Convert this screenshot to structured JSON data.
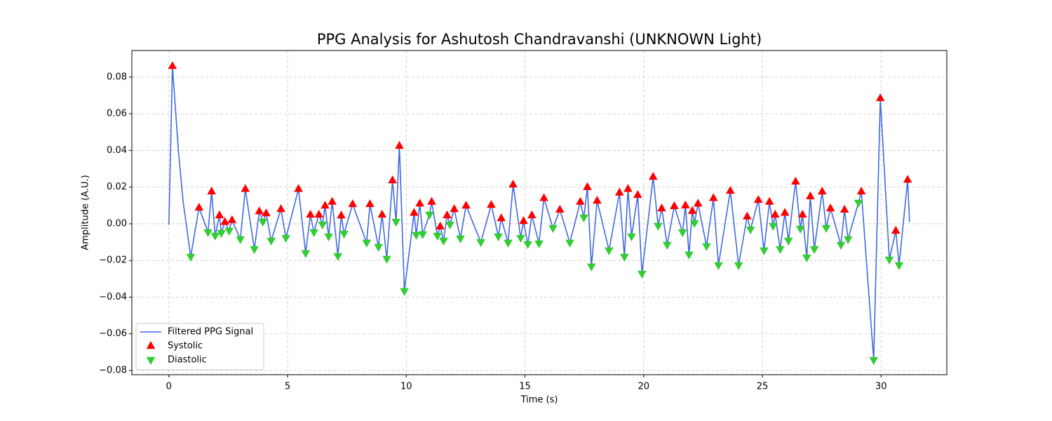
{
  "chart_data": {
    "type": "line",
    "title": "PPG Analysis for Ashutosh Chandravanshi (UNKNOWN Light)",
    "xlabel": "Time (s)",
    "ylabel": "Amplitude (A.U.)",
    "xlim": [
      -1.56,
      32.77
    ],
    "ylim": [
      -0.0823,
      0.0945
    ],
    "xticks": [
      0,
      5,
      10,
      15,
      20,
      25,
      30
    ],
    "yticks": [
      {
        "value": -0.08,
        "label": "−0.08"
      },
      {
        "value": -0.06,
        "label": "−0.06"
      },
      {
        "value": -0.04,
        "label": "−0.04"
      },
      {
        "value": -0.02,
        "label": "−0.02"
      },
      {
        "value": 0,
        "label": "0.00"
      },
      0.02,
      0.04,
      0.06,
      0.08
    ],
    "grid": true,
    "legend": "lower left",
    "series": [
      {
        "name": "Filtered PPG Signal",
        "type": "line",
        "color": "#4169e1",
        "x": [
          0,
          0.15,
          0.4,
          0.6,
          0.92,
          1.27,
          1.65,
          1.8,
          1.95,
          2.13,
          2.21,
          2.36,
          2.54,
          2.66,
          3.01,
          3.22,
          3.6,
          3.81,
          3.96,
          4.1,
          4.31,
          4.72,
          4.93,
          5.46,
          5.76,
          5.96,
          6.11,
          6.32,
          6.47,
          6.58,
          6.73,
          6.88,
          7.12,
          7.26,
          7.38,
          7.74,
          8.33,
          8.47,
          8.83,
          8.98,
          9.18,
          9.42,
          9.57,
          9.71,
          9.92,
          10.33,
          10.42,
          10.57,
          10.69,
          10.98,
          11.07,
          11.31,
          11.43,
          11.57,
          11.72,
          11.84,
          12.02,
          12.28,
          12.52,
          13.14,
          13.58,
          13.88,
          14.0,
          14.29,
          14.5,
          14.82,
          14.94,
          15.12,
          15.29,
          15.59,
          15.8,
          16.18,
          16.47,
          16.89,
          17.33,
          17.48,
          17.63,
          17.8,
          18.04,
          18.54,
          18.98,
          19.19,
          19.34,
          19.49,
          19.75,
          19.93,
          20.4,
          20.61,
          20.76,
          20.99,
          21.29,
          21.64,
          21.76,
          21.91,
          22.05,
          22.14,
          22.29,
          22.65,
          22.94,
          23.15,
          23.65,
          24.0,
          24.36,
          24.5,
          24.83,
          25.07,
          25.3,
          25.45,
          25.54,
          25.75,
          25.95,
          26.1,
          26.4,
          26.6,
          26.69,
          26.87,
          27.02,
          27.19,
          27.52,
          27.69,
          27.87,
          28.31,
          28.46,
          28.61,
          29.05,
          29.17,
          29.69,
          29.97,
          30.35,
          30.62,
          30.76,
          31.12,
          31.2
        ],
        "values": [
          -0.0005,
          0.086,
          0.04,
          0.012,
          -0.018,
          0.0088,
          -0.0046,
          0.0176,
          -0.0065,
          0.0046,
          -0.005,
          0.001,
          -0.0038,
          0.002,
          -0.0084,
          0.019,
          -0.0138,
          0.0068,
          0.0011,
          0.0057,
          -0.0092,
          0.008,
          -0.0077,
          0.019,
          -0.016,
          0.005,
          -0.0046,
          0.005,
          -0.0004,
          0.0099,
          -0.0069,
          0.012,
          -0.0176,
          0.0045,
          -0.0054,
          0.0107,
          -0.0103,
          0.0107,
          -0.0126,
          0.005,
          -0.0191,
          0.0237,
          0.0011,
          0.0425,
          -0.0367,
          0.006,
          -0.0061,
          0.011,
          -0.0057,
          0.005,
          0.012,
          -0.0065,
          -0.0015,
          -0.0092,
          0.0046,
          -0.0004,
          0.008,
          -0.008,
          0.0099,
          -0.01,
          0.0103,
          -0.0069,
          0.003,
          -0.0103,
          0.0214,
          -0.0077,
          0.0015,
          -0.0111,
          0.0046,
          -0.0107,
          0.014,
          -0.0023,
          0.0077,
          -0.0103,
          0.012,
          0.0034,
          0.02,
          -0.0233,
          0.0126,
          -0.0145,
          0.017,
          -0.018,
          0.019,
          -0.0069,
          0.0157,
          -0.0272,
          0.0256,
          -0.0011,
          0.0084,
          -0.0115,
          0.0096,
          -0.0046,
          0.01,
          -0.0168,
          0.007,
          0.0004,
          0.011,
          -0.0122,
          0.014,
          -0.0226,
          0.018,
          -0.0226,
          0.004,
          -0.0031,
          0.013,
          -0.0145,
          0.012,
          -0.0011,
          0.005,
          -0.0138,
          0.006,
          -0.0092,
          0.023,
          -0.0027,
          0.005,
          -0.0184,
          0.015,
          -0.0138,
          0.0176,
          -0.0023,
          0.0084,
          -0.0115,
          0.0077,
          -0.0084,
          0.0115,
          0.0176,
          -0.0743,
          0.0685,
          -0.0195,
          -0.0038,
          -0.0226,
          0.024,
          0.001
        ]
      },
      {
        "name": "Systolic",
        "type": "scatter",
        "marker": "^",
        "color": "#ff0000",
        "x": [
          0.15,
          1.27,
          1.8,
          2.13,
          2.36,
          2.66,
          3.22,
          3.81,
          4.1,
          4.72,
          5.46,
          5.96,
          6.32,
          6.58,
          6.88,
          7.26,
          7.74,
          8.47,
          8.98,
          9.42,
          9.71,
          10.33,
          10.57,
          11.07,
          11.43,
          11.72,
          12.02,
          12.52,
          13.58,
          14.0,
          14.5,
          14.94,
          15.29,
          15.8,
          16.47,
          17.33,
          17.63,
          18.04,
          18.98,
          19.34,
          19.75,
          20.4,
          20.76,
          21.29,
          21.76,
          22.05,
          22.29,
          22.94,
          23.65,
          24.36,
          24.83,
          25.3,
          25.54,
          25.95,
          26.4,
          26.69,
          27.02,
          27.52,
          27.87,
          28.46,
          29.17,
          29.97,
          30.62,
          31.12
        ],
        "values": [
          0.086,
          0.0088,
          0.0176,
          0.0046,
          0.001,
          0.002,
          0.019,
          0.0068,
          0.0057,
          0.008,
          0.019,
          0.005,
          0.005,
          0.0099,
          0.012,
          0.0045,
          0.0107,
          0.0107,
          0.005,
          0.0237,
          0.0425,
          0.006,
          0.011,
          0.012,
          -0.0015,
          0.0046,
          0.008,
          0.0099,
          0.0103,
          0.003,
          0.0214,
          0.0015,
          0.0046,
          0.014,
          0.0077,
          0.012,
          0.02,
          0.0126,
          0.017,
          0.019,
          0.0157,
          0.0256,
          0.0084,
          0.0096,
          0.01,
          0.007,
          0.011,
          0.014,
          0.018,
          0.004,
          0.013,
          0.012,
          0.005,
          0.006,
          0.023,
          0.005,
          0.015,
          0.0176,
          0.0084,
          0.0077,
          0.0176,
          0.0685,
          -0.0038,
          0.024
        ]
      },
      {
        "name": "Diastolic",
        "type": "scatter",
        "marker": "v",
        "color": "#32cd32",
        "x": [
          0.92,
          1.65,
          1.95,
          2.21,
          2.54,
          3.01,
          3.6,
          3.96,
          4.31,
          4.93,
          5.76,
          6.11,
          6.47,
          6.73,
          7.12,
          7.38,
          8.33,
          8.83,
          9.18,
          9.57,
          9.92,
          10.42,
          10.69,
          10.98,
          11.31,
          11.57,
          11.84,
          12.28,
          13.14,
          13.88,
          14.29,
          14.82,
          15.12,
          15.59,
          16.18,
          16.89,
          17.48,
          17.8,
          18.54,
          19.19,
          19.49,
          19.93,
          20.61,
          20.99,
          21.64,
          21.91,
          22.14,
          22.65,
          23.15,
          24.0,
          24.5,
          25.07,
          25.45,
          25.75,
          26.1,
          26.6,
          26.87,
          27.19,
          27.69,
          28.31,
          28.61,
          29.05,
          29.69,
          30.35,
          30.76
        ],
        "values": [
          -0.018,
          -0.0046,
          -0.0065,
          -0.005,
          -0.0038,
          -0.0084,
          -0.0138,
          0.0011,
          -0.0092,
          -0.0077,
          -0.016,
          -0.0046,
          -0.0004,
          -0.0069,
          -0.0176,
          -0.0054,
          -0.0103,
          -0.0126,
          -0.0191,
          0.0011,
          -0.0367,
          -0.0061,
          -0.0057,
          0.005,
          -0.0065,
          -0.0092,
          -0.0004,
          -0.008,
          -0.01,
          -0.0069,
          -0.0103,
          -0.0077,
          -0.0111,
          -0.0107,
          -0.0023,
          -0.0103,
          0.0034,
          -0.0233,
          -0.0145,
          -0.018,
          -0.0069,
          -0.0272,
          -0.0011,
          -0.0115,
          -0.0046,
          -0.0168,
          0.0004,
          -0.0122,
          -0.0226,
          -0.0226,
          -0.0031,
          -0.0145,
          -0.0011,
          -0.0138,
          -0.0092,
          -0.0027,
          -0.0184,
          -0.0138,
          -0.0023,
          -0.0115,
          -0.0084,
          0.0115,
          -0.0743,
          -0.0195,
          -0.0226
        ]
      }
    ]
  }
}
